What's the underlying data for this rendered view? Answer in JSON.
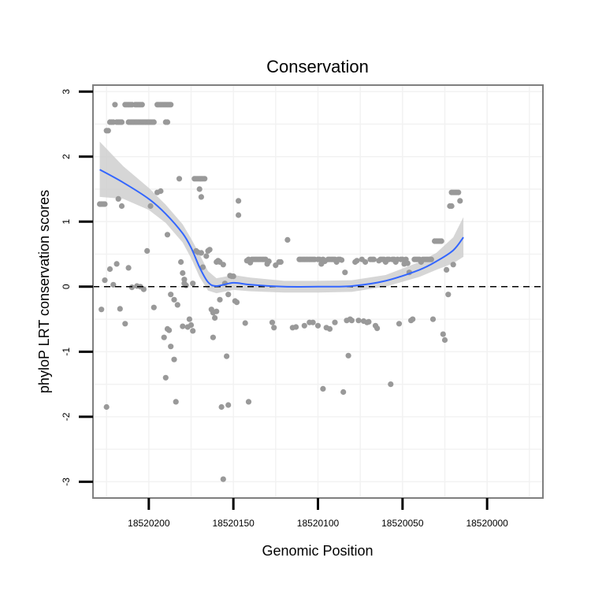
{
  "chart_data": {
    "type": "scatter",
    "title": "Conservation",
    "xlabel": "Genomic Position",
    "ylabel": "phyloP LRT conservation scores",
    "x_reversed": true,
    "xlim": [
      18520233,
      18519967
    ],
    "ylim": [
      -3.25,
      3.1
    ],
    "x_ticks": [
      18520200,
      18520150,
      18520100,
      18520050,
      18520000
    ],
    "x_tick_labels": [
      "18520200",
      "18520150",
      "18520100",
      "18520050",
      "18520000"
    ],
    "y_ticks": [
      -3,
      -2,
      -1,
      0,
      1,
      2,
      3
    ],
    "y_tick_labels": [
      "-3",
      "-2",
      "-1",
      "0",
      "1",
      "2",
      "3"
    ],
    "hline": 0,
    "grid": true,
    "colors": {
      "points": "#999999",
      "smooth": "#3366ff",
      "ribbon": "#cccccc",
      "panel_border": "#7f7f7f",
      "grid": "#f2f2f2"
    },
    "points": [
      [
        18520229,
        1.27
      ],
      [
        18520228,
        1.27
      ],
      [
        18520227,
        1.27
      ],
      [
        18520226,
        1.27
      ],
      [
        18520228,
        -0.35
      ],
      [
        18520226,
        0.1
      ],
      [
        18520225,
        -1.85
      ],
      [
        18520225,
        2.4
      ],
      [
        18520224,
        2.4
      ],
      [
        18520223,
        2.53
      ],
      [
        18520222,
        2.53
      ],
      [
        18520221,
        2.53
      ],
      [
        18520219,
        2.53
      ],
      [
        18520218,
        2.53
      ],
      [
        18520217,
        2.53
      ],
      [
        18520216,
        2.53
      ],
      [
        18520212,
        2.53
      ],
      [
        18520211,
        2.53
      ],
      [
        18520210,
        2.53
      ],
      [
        18520209,
        2.53
      ],
      [
        18520208,
        2.53
      ],
      [
        18520207,
        2.53
      ],
      [
        18520206,
        2.53
      ],
      [
        18520205,
        2.53
      ],
      [
        18520204,
        2.53
      ],
      [
        18520203,
        2.53
      ],
      [
        18520202,
        2.53
      ],
      [
        18520201,
        2.53
      ],
      [
        18520200,
        2.53
      ],
      [
        18520199,
        2.53
      ],
      [
        18520198,
        2.53
      ],
      [
        18520197,
        2.53
      ],
      [
        18520190,
        2.53
      ],
      [
        18520189,
        2.53
      ],
      [
        18520220,
        2.8
      ],
      [
        18520214,
        2.8
      ],
      [
        18520213,
        2.8
      ],
      [
        18520212,
        2.8
      ],
      [
        18520211,
        2.8
      ],
      [
        18520210,
        2.8
      ],
      [
        18520208,
        2.8
      ],
      [
        18520207,
        2.8
      ],
      [
        18520206,
        2.8
      ],
      [
        18520205,
        2.8
      ],
      [
        18520204,
        2.8
      ],
      [
        18520195,
        2.8
      ],
      [
        18520194,
        2.8
      ],
      [
        18520193,
        2.8
      ],
      [
        18520192,
        2.8
      ],
      [
        18520191,
        2.8
      ],
      [
        18520190,
        2.8
      ],
      [
        18520189,
        2.8
      ],
      [
        18520188,
        2.8
      ],
      [
        18520187,
        2.8
      ],
      [
        18520223,
        0.27
      ],
      [
        18520221,
        0.03
      ],
      [
        18520219,
        0.35
      ],
      [
        18520218,
        1.35
      ],
      [
        18520216,
        1.24
      ],
      [
        18520217,
        -0.34
      ],
      [
        18520214,
        -0.57
      ],
      [
        18520212,
        0.29
      ],
      [
        18520210,
        -0.01
      ],
      [
        18520207,
        0.01
      ],
      [
        18520205,
        0.0
      ],
      [
        18520203,
        -0.04
      ],
      [
        18520201,
        0.55
      ],
      [
        18520199,
        1.24
      ],
      [
        18520197,
        -0.32
      ],
      [
        18520195,
        1.45
      ],
      [
        18520193,
        1.47
      ],
      [
        18520191,
        -0.78
      ],
      [
        18520190,
        -1.4
      ],
      [
        18520189,
        -0.65
      ],
      [
        18520188,
        -0.67
      ],
      [
        18520189,
        0.8
      ],
      [
        18520187,
        -0.92
      ],
      [
        18520187,
        -0.12
      ],
      [
        18520185,
        -0.2
      ],
      [
        18520185,
        -1.12
      ],
      [
        18520184,
        -1.77
      ],
      [
        18520183,
        -0.28
      ],
      [
        18520182,
        1.66
      ],
      [
        18520181,
        0.38
      ],
      [
        18520180,
        0.21
      ],
      [
        18520180,
        -0.61
      ],
      [
        18520179,
        0.11
      ],
      [
        18520179,
        0.05
      ],
      [
        18520178,
        0.02
      ],
      [
        18520177,
        -0.62
      ],
      [
        18520176,
        -0.5
      ],
      [
        18520175,
        -0.59
      ],
      [
        18520174,
        -0.68
      ],
      [
        18520174,
        0.05
      ],
      [
        18520172,
        0.55
      ],
      [
        18520171,
        0.53
      ],
      [
        18520173,
        1.66
      ],
      [
        18520172,
        1.66
      ],
      [
        18520171,
        1.66
      ],
      [
        18520170,
        1.66
      ],
      [
        18520169,
        1.66
      ],
      [
        18520168,
        1.66
      ],
      [
        18520167,
        1.66
      ],
      [
        18520170,
        1.5
      ],
      [
        18520169,
        1.38
      ],
      [
        18520169,
        0.52
      ],
      [
        18520168,
        0.3
      ],
      [
        18520166,
        0.47
      ],
      [
        18520165,
        0.55
      ],
      [
        18520164,
        0.57
      ],
      [
        18520163,
        -0.35
      ],
      [
        18520162,
        -0.4
      ],
      [
        18520162,
        -0.78
      ],
      [
        18520161,
        -0.48
      ],
      [
        18520160,
        -0.38
      ],
      [
        18520160,
        0.38
      ],
      [
        18520159,
        0.4
      ],
      [
        18520158,
        0.38
      ],
      [
        18520158,
        -0.2
      ],
      [
        18520157,
        -1.85
      ],
      [
        18520156,
        0.34
      ],
      [
        18520155,
        0.05
      ],
      [
        18520154,
        -1.07
      ],
      [
        18520153,
        -1.82
      ],
      [
        18520153,
        -0.12
      ],
      [
        18520152,
        0.17
      ],
      [
        18520151,
        0.16
      ],
      [
        18520150,
        0.16
      ],
      [
        18520149,
        -0.22
      ],
      [
        18520148,
        -0.24
      ],
      [
        18520147,
        1.1
      ],
      [
        18520147,
        1.32
      ],
      [
        18520156,
        -2.96
      ],
      [
        18520143,
        -0.56
      ],
      [
        18520142,
        0.4
      ],
      [
        18520141,
        0.42
      ],
      [
        18520141,
        -1.77
      ],
      [
        18520140,
        0.37
      ],
      [
        18520139,
        0.42
      ],
      [
        18520138,
        0.42
      ],
      [
        18520137,
        0.42
      ],
      [
        18520136,
        0.42
      ],
      [
        18520135,
        0.42
      ],
      [
        18520134,
        0.42
      ],
      [
        18520133,
        0.42
      ],
      [
        18520132,
        0.42
      ],
      [
        18520131,
        0.42
      ],
      [
        18520130,
        0.35
      ],
      [
        18520129,
        0.39
      ],
      [
        18520127,
        -0.55
      ],
      [
        18520126,
        -0.63
      ],
      [
        18520125,
        0.33
      ],
      [
        18520123,
        0.38
      ],
      [
        18520122,
        0.38
      ],
      [
        18520118,
        0.72
      ],
      [
        18520115,
        -0.63
      ],
      [
        18520113,
        -0.62
      ],
      [
        18520111,
        0.42
      ],
      [
        18520110,
        0.42
      ],
      [
        18520109,
        0.42
      ],
      [
        18520108,
        0.42
      ],
      [
        18520107,
        0.42
      ],
      [
        18520106,
        0.42
      ],
      [
        18520105,
        0.42
      ],
      [
        18520104,
        0.42
      ],
      [
        18520103,
        0.42
      ],
      [
        18520102,
        0.42
      ],
      [
        18520100,
        0.42
      ],
      [
        18520099,
        0.42
      ],
      [
        18520098,
        0.35
      ],
      [
        18520097,
        0.42
      ],
      [
        18520096,
        0.39
      ],
      [
        18520094,
        0.42
      ],
      [
        18520093,
        0.42
      ],
      [
        18520092,
        0.42
      ],
      [
        18520091,
        0.42
      ],
      [
        18520090,
        0.42
      ],
      [
        18520089,
        0.38
      ],
      [
        18520108,
        -0.6
      ],
      [
        18520105,
        -0.55
      ],
      [
        18520103,
        -0.55
      ],
      [
        18520100,
        -0.6
      ],
      [
        18520097,
        -1.57
      ],
      [
        18520095,
        -0.63
      ],
      [
        18520093,
        -0.65
      ],
      [
        18520090,
        -0.55
      ],
      [
        18520088,
        0.42
      ],
      [
        18520087,
        0.42
      ],
      [
        18520086,
        0.41
      ],
      [
        18520085,
        -1.62
      ],
      [
        18520084,
        0.22
      ],
      [
        18520083,
        -0.52
      ],
      [
        18520082,
        -1.06
      ],
      [
        18520081,
        -0.5
      ],
      [
        18520080,
        -0.52
      ],
      [
        18520078,
        0.38
      ],
      [
        18520077,
        0.4
      ],
      [
        18520076,
        -0.52
      ],
      [
        18520074,
        0.42
      ],
      [
        18520073,
        -0.53
      ],
      [
        18520072,
        0.38
      ],
      [
        18520071,
        -0.55
      ],
      [
        18520070,
        -0.54
      ],
      [
        18520069,
        0.42
      ],
      [
        18520068,
        0.42
      ],
      [
        18520067,
        0.42
      ],
      [
        18520066,
        -0.6
      ],
      [
        18520065,
        -0.64
      ],
      [
        18520064,
        0.4
      ],
      [
        18520063,
        0.42
      ],
      [
        18520062,
        0.42
      ],
      [
        18520061,
        0.42
      ],
      [
        18520060,
        0.38
      ],
      [
        18520059,
        0.42
      ],
      [
        18520058,
        0.42
      ],
      [
        18520057,
        -1.5
      ],
      [
        18520056,
        0.42
      ],
      [
        18520055,
        0.42
      ],
      [
        18520054,
        0.38
      ],
      [
        18520053,
        0.42
      ],
      [
        18520052,
        -0.57
      ],
      [
        18520051,
        0.42
      ],
      [
        18520050,
        0.42
      ],
      [
        18520049,
        0.35
      ],
      [
        18520048,
        0.42
      ],
      [
        18520047,
        0.36
      ],
      [
        18520046,
        0.22
      ],
      [
        18520045,
        -0.52
      ],
      [
        18520044,
        -0.5
      ],
      [
        18520043,
        0.42
      ],
      [
        18520042,
        0.42
      ],
      [
        18520041,
        0.42
      ],
      [
        18520040,
        0.42
      ],
      [
        18520039,
        0.38
      ],
      [
        18520038,
        0.42
      ],
      [
        18520037,
        0.42
      ],
      [
        18520036,
        0.42
      ],
      [
        18520035,
        0.42
      ],
      [
        18520034,
        0.42
      ],
      [
        18520033,
        0.42
      ],
      [
        18520032,
        -0.5
      ],
      [
        18520031,
        0.7
      ],
      [
        18520030,
        0.7
      ],
      [
        18520029,
        0.7
      ],
      [
        18520028,
        0.7
      ],
      [
        18520027,
        0.7
      ],
      [
        18520026,
        -0.73
      ],
      [
        18520025,
        -0.82
      ],
      [
        18520024,
        0.26
      ],
      [
        18520023,
        -0.12
      ],
      [
        18520022,
        1.24
      ],
      [
        18520021,
        1.24
      ],
      [
        18520021,
        1.45
      ],
      [
        18520020,
        1.45
      ],
      [
        18520019,
        1.45
      ],
      [
        18520018,
        1.45
      ],
      [
        18520017,
        1.45
      ],
      [
        18520020,
        0.34
      ],
      [
        18520016,
        1.32
      ]
    ],
    "smooth": [
      [
        18520229,
        1.8
      ],
      [
        18520215,
        1.6
      ],
      [
        18520200,
        1.35
      ],
      [
        18520190,
        1.12
      ],
      [
        18520180,
        0.82
      ],
      [
        18520175,
        0.6
      ],
      [
        18520170,
        0.3
      ],
      [
        18520165,
        0.07
      ],
      [
        18520160,
        0.01
      ],
      [
        18520150,
        0.06
      ],
      [
        18520140,
        0.03
      ],
      [
        18520120,
        0.0
      ],
      [
        18520100,
        0.0
      ],
      [
        18520080,
        0.01
      ],
      [
        18520060,
        0.09
      ],
      [
        18520040,
        0.26
      ],
      [
        18520030,
        0.39
      ],
      [
        18520020,
        0.56
      ],
      [
        18520014,
        0.76
      ]
    ],
    "ribbon": [
      [
        18520229,
        1.38,
        2.23
      ],
      [
        18520215,
        1.35,
        1.85
      ],
      [
        18520200,
        1.18,
        1.52
      ],
      [
        18520190,
        0.98,
        1.26
      ],
      [
        18520180,
        0.68,
        0.96
      ],
      [
        18520175,
        0.44,
        0.74
      ],
      [
        18520170,
        0.15,
        0.5
      ],
      [
        18520165,
        -0.06,
        0.24
      ],
      [
        18520160,
        -0.1,
        0.13
      ],
      [
        18520150,
        -0.05,
        0.18
      ],
      [
        18520140,
        -0.07,
        0.14
      ],
      [
        18520120,
        -0.09,
        0.09
      ],
      [
        18520100,
        -0.09,
        0.09
      ],
      [
        18520080,
        -0.08,
        0.1
      ],
      [
        18520060,
        0.0,
        0.18
      ],
      [
        18520040,
        0.15,
        0.38
      ],
      [
        18520030,
        0.26,
        0.52
      ],
      [
        18520020,
        0.36,
        0.76
      ],
      [
        18520014,
        0.46,
        1.07
      ]
    ]
  }
}
